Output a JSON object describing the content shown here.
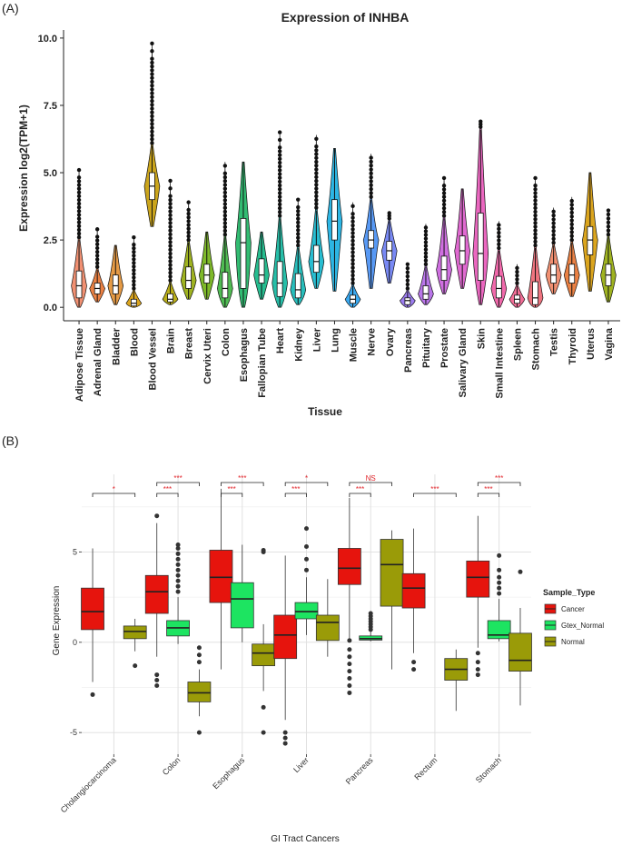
{
  "chart_data": [
    {
      "type": "violin-box",
      "panel_label": "(A)",
      "title": "Expression of INHBA",
      "xlabel": "Tissue",
      "ylabel": "Expression log2(TPM+1)",
      "ylim": [
        -0.5,
        10.3
      ],
      "yticks": [
        "0.0",
        "2.5",
        "5.0",
        "7.5",
        "10.0"
      ],
      "ytick_values": [
        0,
        2.5,
        5,
        7.5,
        10
      ],
      "categories": [
        "Adipose Tissue",
        "Adrenal Gland",
        "Bladder",
        "Blood",
        "Blood Vessel",
        "Brain",
        "Breast",
        "Cervix Uteri",
        "Colon",
        "Esophagus",
        "Fallopian Tube",
        "Heart",
        "Kidney",
        "Liver",
        "Lung",
        "Muscle",
        "Nerve",
        "Ovary",
        "Pancreas",
        "Pituitary",
        "Prostate",
        "Salivary Gland",
        "Skin",
        "Small Intestine",
        "Spleen",
        "Stomach",
        "Testis",
        "Thyroid",
        "Uterus",
        "Vagina"
      ],
      "colors": [
        "#f08a6a",
        "#e97a3a",
        "#e4953b",
        "#d9a012",
        "#c8a010",
        "#b5aa0c",
        "#9aaf14",
        "#77b51e",
        "#47b84a",
        "#27b86a",
        "#1bb98a",
        "#1bbba3",
        "#1cbbb8",
        "#1cb9cf",
        "#22b2e3",
        "#2fa4ef",
        "#4f94f3",
        "#7283f3",
        "#9877f0",
        "#b56fe8",
        "#cc67de",
        "#de62cf",
        "#ea5fbd",
        "#f061a7",
        "#f06690",
        "#ee6d78",
        "#f08a6a",
        "#e97a3a",
        "#d9a012",
        "#9aaf14"
      ],
      "stats": [
        {
          "min": 0.0,
          "q1": 0.35,
          "median": 0.8,
          "q3": 1.35,
          "max": 2.5,
          "outliers_top": 5.1,
          "outlier_start": 2.6
        },
        {
          "min": 0.2,
          "q1": 0.5,
          "median": 0.7,
          "q3": 0.9,
          "max": 1.4,
          "outliers_top": 2.9,
          "outlier_start": 1.5
        },
        {
          "min": 0.1,
          "q1": 0.5,
          "median": 0.8,
          "q3": 1.2,
          "max": 2.3,
          "outliers_top": null,
          "outlier_start": null
        },
        {
          "min": 0.0,
          "q1": 0.05,
          "median": 0.15,
          "q3": 0.3,
          "max": 0.6,
          "outliers_top": 2.6,
          "outlier_start": 0.7
        },
        {
          "min": 3.0,
          "q1": 4.0,
          "median": 4.5,
          "q3": 5.0,
          "max": 6.0,
          "outliers_top": 9.8,
          "outlier_start": 6.1
        },
        {
          "min": 0.1,
          "q1": 0.2,
          "median": 0.3,
          "q3": 0.5,
          "max": 0.9,
          "outliers_top": 4.7,
          "outlier_start": 1.0
        },
        {
          "min": 0.3,
          "q1": 0.7,
          "median": 1.0,
          "q3": 1.5,
          "max": 2.4,
          "outliers_top": 3.9,
          "outlier_start": 2.5
        },
        {
          "min": 0.3,
          "q1": 0.9,
          "median": 1.2,
          "q3": 1.6,
          "max": 2.8,
          "outliers_top": null,
          "outlier_start": null
        },
        {
          "min": 0.0,
          "q1": 0.35,
          "median": 0.7,
          "q3": 1.3,
          "max": 2.6,
          "outliers_top": 5.4,
          "outlier_start": 2.7
        },
        {
          "min": 0.0,
          "q1": 0.7,
          "median": 2.4,
          "q3": 3.3,
          "max": 5.4,
          "outliers_top": null,
          "outlier_start": null
        },
        {
          "min": 0.3,
          "q1": 0.9,
          "median": 1.2,
          "q3": 1.8,
          "max": 2.8,
          "outliers_top": null,
          "outlier_start": null
        },
        {
          "min": 0.0,
          "q1": 0.4,
          "median": 0.9,
          "q3": 1.7,
          "max": 3.3,
          "outliers_top": 6.5,
          "outlier_start": 3.4
        },
        {
          "min": 0.1,
          "q1": 0.35,
          "median": 0.65,
          "q3": 1.25,
          "max": 2.2,
          "outliers_top": 4.0,
          "outlier_start": 2.3
        },
        {
          "min": 0.7,
          "q1": 1.3,
          "median": 1.7,
          "q3": 2.3,
          "max": 3.6,
          "outliers_top": 6.4,
          "outlier_start": 3.7
        },
        {
          "min": 0.6,
          "q1": 2.5,
          "median": 3.2,
          "q3": 4.0,
          "max": 5.9,
          "outliers_top": null,
          "outlier_start": null
        },
        {
          "min": 0.0,
          "q1": 0.15,
          "median": 0.3,
          "q3": 0.45,
          "max": 0.8,
          "outliers_top": 3.9,
          "outlier_start": 0.9
        },
        {
          "min": 0.7,
          "q1": 2.2,
          "median": 2.5,
          "q3": 2.85,
          "max": 4.0,
          "outliers_top": 5.7,
          "outlier_start": 4.1
        },
        {
          "min": 0.9,
          "q1": 1.75,
          "median": 2.1,
          "q3": 2.45,
          "max": 3.2,
          "outliers_top": 3.5,
          "outlier_start": 3.3
        },
        {
          "min": 0.0,
          "q1": 0.1,
          "median": 0.25,
          "q3": 0.35,
          "max": 0.6,
          "outliers_top": 1.6,
          "outlier_start": 0.7
        },
        {
          "min": 0.1,
          "q1": 0.3,
          "median": 0.5,
          "q3": 0.8,
          "max": 1.5,
          "outliers_top": 3.1,
          "outlier_start": 1.6
        },
        {
          "min": 0.5,
          "q1": 1.0,
          "median": 1.4,
          "q3": 1.9,
          "max": 3.3,
          "outliers_top": 4.8,
          "outlier_start": 3.4
        },
        {
          "min": 0.7,
          "q1": 1.6,
          "median": 2.1,
          "q3": 2.65,
          "max": 4.4,
          "outliers_top": null,
          "outlier_start": null
        },
        {
          "min": 0.1,
          "q1": 1.0,
          "median": 2.0,
          "q3": 3.5,
          "max": 6.6,
          "outliers_top": 6.9,
          "outlier_start": 6.7
        },
        {
          "min": 0.0,
          "q1": 0.35,
          "median": 0.7,
          "q3": 1.15,
          "max": 2.1,
          "outliers_top": 3.2,
          "outlier_start": 2.2
        },
        {
          "min": 0.0,
          "q1": 0.15,
          "median": 0.3,
          "q3": 0.45,
          "max": 0.8,
          "outliers_top": 1.6,
          "outlier_start": 0.9
        },
        {
          "min": 0.0,
          "q1": 0.1,
          "median": 0.35,
          "q3": 0.95,
          "max": 2.2,
          "outliers_top": 4.8,
          "outlier_start": 2.3
        },
        {
          "min": 0.5,
          "q1": 0.9,
          "median": 1.2,
          "q3": 1.6,
          "max": 2.3,
          "outliers_top": 3.7,
          "outlier_start": 2.4
        },
        {
          "min": 0.4,
          "q1": 0.9,
          "median": 1.2,
          "q3": 1.6,
          "max": 2.4,
          "outliers_top": 4.1,
          "outlier_start": 2.5
        },
        {
          "min": 0.6,
          "q1": 1.95,
          "median": 2.5,
          "q3": 3.0,
          "max": 5.0,
          "outliers_top": null,
          "outlier_start": null
        },
        {
          "min": 0.2,
          "q1": 0.8,
          "median": 1.2,
          "q3": 1.6,
          "max": 2.6,
          "outliers_top": 3.6,
          "outlier_start": 2.7
        }
      ]
    },
    {
      "type": "box",
      "panel_label": "(B)",
      "xlabel": "GI Tract Cancers",
      "ylabel": "Gene Expression",
      "ylim": [
        -6.2,
        9.3
      ],
      "yticks": [
        "-5",
        "0",
        "5"
      ],
      "ytick_values": [
        -5,
        0,
        5
      ],
      "categories": [
        "Cholangiocarcinoma",
        "Colon",
        "Esophagus",
        "Liver",
        "Pancreas",
        "Rectum",
        "Stomach"
      ],
      "legend": {
        "title": "Sample_Type",
        "position": "right",
        "items": [
          {
            "name": "Cancer",
            "color": "#e6140d"
          },
          {
            "name": "Gtex_Normal",
            "color": "#1de461"
          },
          {
            "name": "Normal",
            "color": "#9a9b08"
          }
        ]
      },
      "series": [
        {
          "name": "Cancer",
          "color": "#e6140d",
          "boxes": [
            {
              "min": -2.2,
              "q1": 0.7,
              "median": 1.7,
              "q3": 3.0,
              "max": 5.2,
              "outliers": [
                -2.9
              ]
            },
            {
              "min": -0.8,
              "q1": 1.6,
              "median": 2.8,
              "q3": 3.7,
              "max": 6.6,
              "outliers": [
                7.0,
                -1.8,
                -2.1,
                -2.4
              ]
            },
            {
              "min": -1.5,
              "q1": 2.2,
              "median": 3.6,
              "q3": 5.1,
              "max": 8.5,
              "outliers": []
            },
            {
              "min": -4.3,
              "q1": -0.9,
              "median": 0.4,
              "q3": 1.5,
              "max": 4.8,
              "outliers": [
                -5.0,
                -5.3,
                -5.6
              ]
            },
            {
              "min": 0.2,
              "q1": 3.2,
              "median": 4.1,
              "q3": 5.2,
              "max": 8.0,
              "outliers": [
                0.1,
                -0.4,
                -0.8,
                -1.2,
                -1.6,
                -2.0,
                -2.4,
                -2.8
              ]
            },
            {
              "min": -0.6,
              "q1": 1.9,
              "median": 3.0,
              "q3": 3.8,
              "max": 6.3,
              "outliers": [
                -1.1,
                -1.5
              ]
            },
            {
              "min": -0.3,
              "q1": 2.5,
              "median": 3.6,
              "q3": 4.5,
              "max": 7.0,
              "outliers": [
                -0.6,
                -1.1,
                -1.5,
                -1.8
              ]
            }
          ]
        },
        {
          "name": "Gtex_Normal",
          "color": "#1de461",
          "boxes": [
            null,
            {
              "min": -0.1,
              "q1": 0.35,
              "median": 0.8,
              "q3": 1.2,
              "max": 2.5,
              "outliers": [
                2.8,
                3.1,
                3.4,
                3.7,
                4.0,
                4.3,
                4.6,
                4.9,
                5.2,
                5.4
              ]
            },
            {
              "min": 0.0,
              "q1": 0.8,
              "median": 2.4,
              "q3": 3.3,
              "max": 5.4,
              "outliers": []
            },
            {
              "min": 0.4,
              "q1": 1.3,
              "median": 1.7,
              "q3": 2.2,
              "max": 3.6,
              "outliers": [
                4.0,
                4.6,
                5.3,
                6.3
              ]
            },
            {
              "min": 0.05,
              "q1": 0.12,
              "median": 0.2,
              "q3": 0.35,
              "max": 0.6,
              "outliers": [
                0.7,
                0.85,
                1.0,
                1.15,
                1.3,
                1.45,
                1.6
              ]
            },
            null,
            {
              "min": 0.05,
              "q1": 0.2,
              "median": 0.4,
              "q3": 1.2,
              "max": 2.4,
              "outliers": [
                2.7,
                3.0,
                3.3,
                3.6,
                4.0,
                4.8
              ]
            }
          ]
        },
        {
          "name": "Normal",
          "color": "#9a9b08",
          "boxes": [
            {
              "min": -0.5,
              "q1": 0.2,
              "median": 0.6,
              "q3": 0.9,
              "max": 1.3,
              "outliers": [
                -1.3
              ]
            },
            {
              "min": -4.1,
              "q1": -3.3,
              "median": -2.8,
              "q3": -2.2,
              "max": -1.5,
              "outliers": [
                -0.3,
                -0.7,
                -1.1,
                -5.0
              ]
            },
            {
              "min": -2.7,
              "q1": -1.3,
              "median": -0.6,
              "q3": -0.1,
              "max": 1.0,
              "outliers": [
                5.1,
                5.0,
                -3.6,
                -5.0
              ]
            },
            {
              "min": -0.8,
              "q1": 0.1,
              "median": 1.1,
              "q3": 1.5,
              "max": 3.5,
              "outliers": []
            },
            {
              "min": -1.5,
              "q1": 2.0,
              "median": 4.3,
              "q3": 5.7,
              "max": 6.2,
              "outliers": []
            },
            {
              "min": -3.8,
              "q1": -2.1,
              "median": -1.5,
              "q3": -0.9,
              "max": -0.4,
              "outliers": []
            },
            {
              "min": -3.5,
              "q1": -1.6,
              "median": -1.0,
              "q3": 0.5,
              "max": 1.9,
              "outliers": [
                3.9
              ]
            }
          ]
        }
      ],
      "significance": [
        {
          "group": 0,
          "from": 0,
          "to": 2,
          "label": "*",
          "level": 0
        },
        {
          "group": 1,
          "from": 0,
          "to": 1,
          "label": "***",
          "level": 0
        },
        {
          "group": 1,
          "from": 0,
          "to": 2,
          "label": "***",
          "level": 1
        },
        {
          "group": 2,
          "from": 0,
          "to": 1,
          "label": "***",
          "level": 0
        },
        {
          "group": 2,
          "from": 0,
          "to": 2,
          "label": "***",
          "level": 1
        },
        {
          "group": 3,
          "from": 0,
          "to": 1,
          "label": "***",
          "level": 0
        },
        {
          "group": 3,
          "from": 0,
          "to": 2,
          "label": "*",
          "level": 1
        },
        {
          "group": 4,
          "from": 0,
          "to": 1,
          "label": "***",
          "level": 0
        },
        {
          "group": 4,
          "from": 0,
          "to": 2,
          "label": "NS",
          "level": 1
        },
        {
          "group": 5,
          "from": 0,
          "to": 2,
          "label": "***",
          "level": 0
        },
        {
          "group": 6,
          "from": 0,
          "to": 1,
          "label": "***",
          "level": 0
        },
        {
          "group": 6,
          "from": 0,
          "to": 2,
          "label": "***",
          "level": 1
        }
      ]
    }
  ]
}
